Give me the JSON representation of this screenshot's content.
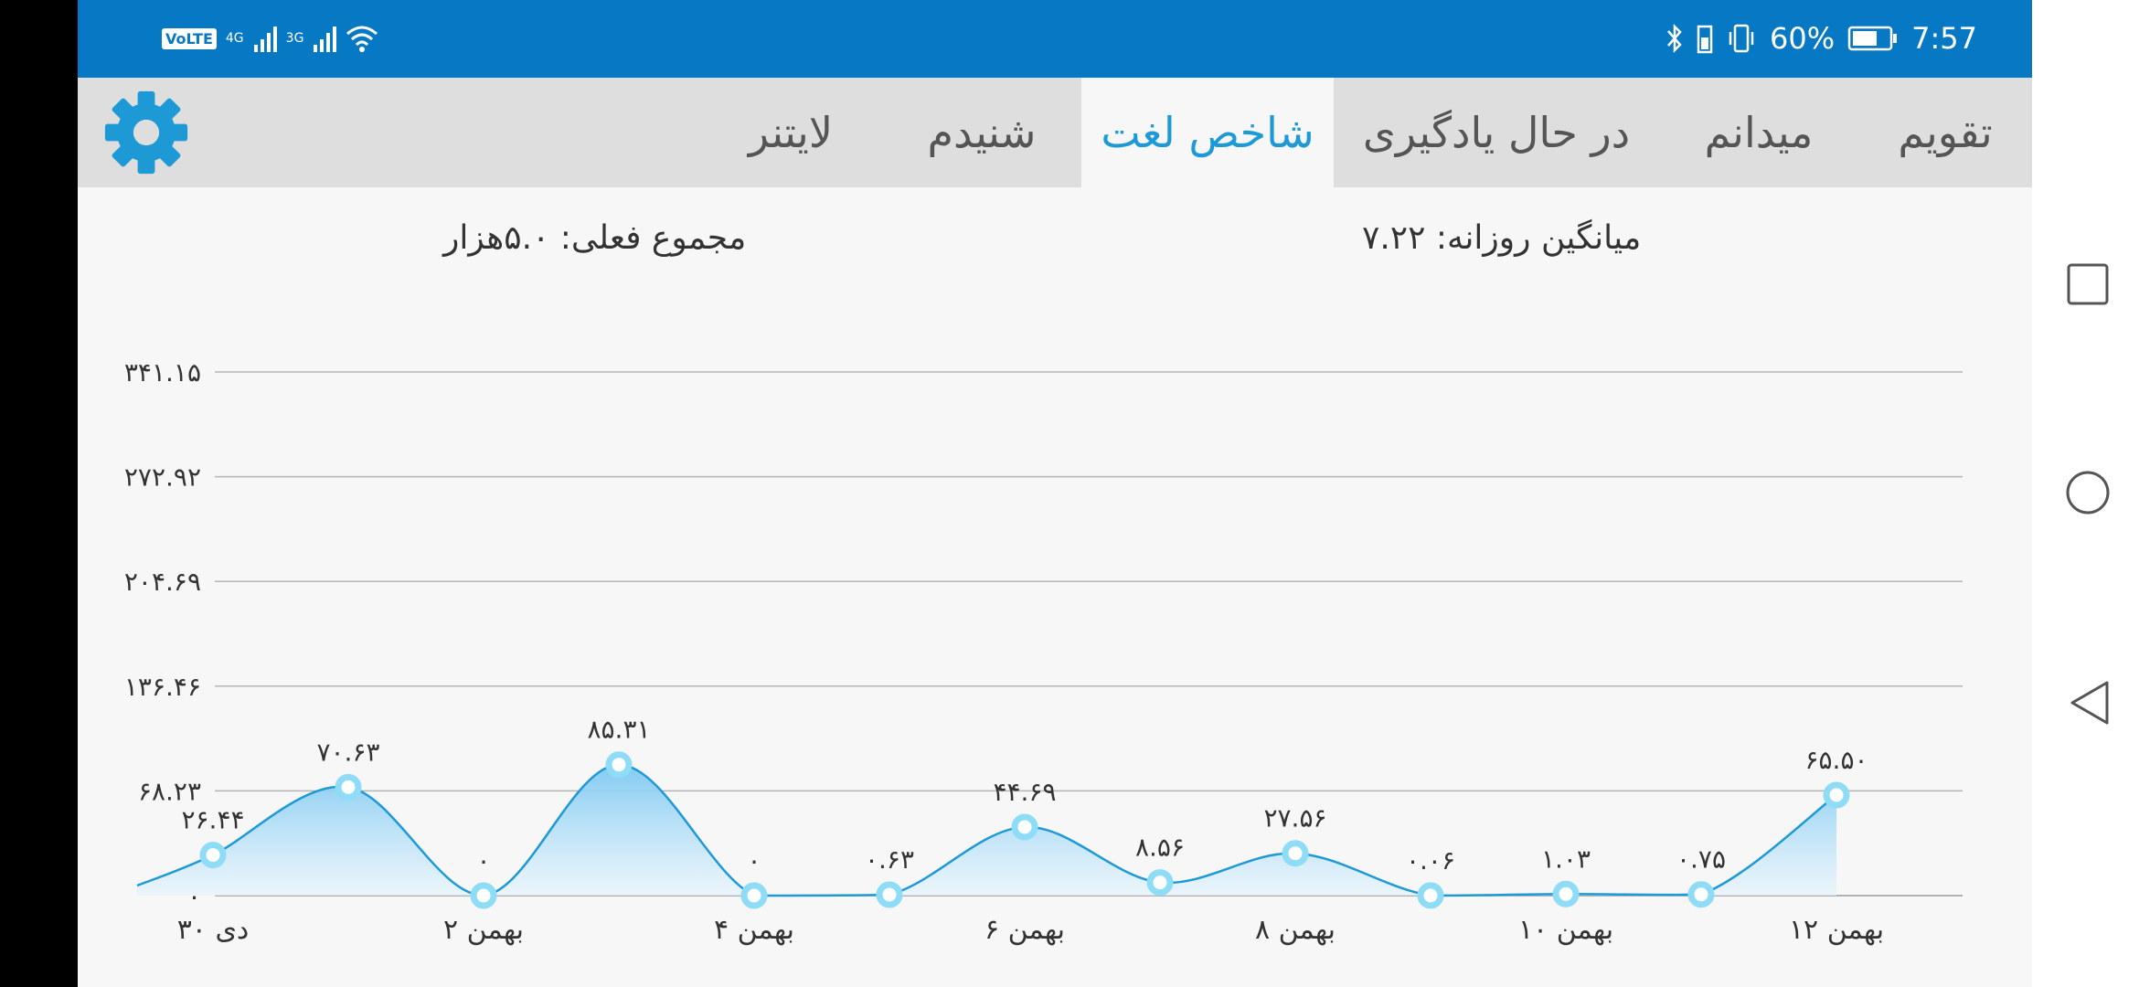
{
  "status_bar": {
    "volte": "VoLTE",
    "sim1_net": "4G",
    "sim2_net": "3G",
    "battery_pct": "60%",
    "time": "7:57",
    "icons": [
      "volte-icon",
      "signal-icon",
      "signal-icon",
      "wifi-icon",
      "bluetooth-icon",
      "vibrate-icon",
      "battery-icon"
    ]
  },
  "tabs": [
    {
      "label": "تقویم",
      "active": false
    },
    {
      "label": "میدانم",
      "active": false
    },
    {
      "label": "در حال یادگیری",
      "active": false
    },
    {
      "label": "شاخص لغت",
      "active": true
    },
    {
      "label": "شنیدم",
      "active": false
    },
    {
      "label": "لایتنر",
      "active": false
    }
  ],
  "settings_icon": "gear-icon",
  "accent_color": "#1d9ad6",
  "status_bar_color": "#0779c4",
  "summary": {
    "daily_average": "میانگین روزانه: ۷.۲۲",
    "current_total": "مجموع فعلی: ۵.۰هزار"
  },
  "chart_data": {
    "type": "area",
    "smooth": true,
    "x_ticks": [
      "۳۰ دی",
      "۲ بهمن",
      "۴ بهمن",
      "۶ بهمن",
      "۸ بهمن",
      "۱۰ بهمن",
      "۱۲ بهمن"
    ],
    "y_ticks": [
      "۰",
      "۶۸.۲۳",
      "۱۳۶.۴۶",
      "۲۰۴.۶۹",
      "۲۷۲.۹۲",
      "۳۴۱.۱۵"
    ],
    "ylim": [
      0,
      341.15
    ],
    "grid": true,
    "series": [
      {
        "values": [
          26.44,
          70.63,
          0,
          85.31,
          0,
          0.63,
          44.69,
          8.56,
          27.56,
          0.06,
          1.03,
          0.75,
          65.5
        ],
        "labels": [
          "۲۶.۴۴",
          "۷۰.۶۳",
          "۰",
          "۸۵.۳۱",
          "۰",
          "۰.۶۳",
          "۴۴.۶۹",
          "۸.۵۶",
          "۲۷.۵۶",
          "۰.۰۶",
          "۱.۰۳",
          "۰.۷۵",
          "۶۵.۵۰"
        ]
      }
    ]
  },
  "nav_bar": {
    "icons": [
      "recents-icon",
      "home-icon",
      "back-icon"
    ]
  }
}
